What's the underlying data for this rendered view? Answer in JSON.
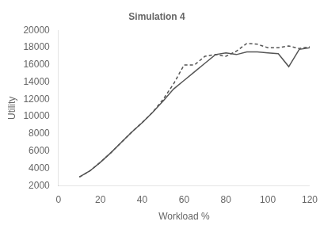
{
  "chart_data": {
    "type": "line",
    "title": "Simulation 4",
    "xlabel": "Workload %",
    "ylabel": "Utility",
    "x": [
      10,
      15,
      20,
      25,
      30,
      35,
      40,
      45,
      50,
      55,
      60,
      65,
      70,
      75,
      80,
      85,
      90,
      95,
      100,
      105,
      110,
      115,
      120
    ],
    "series": [
      {
        "color": "#555555",
        "line_style": "solid",
        "values": [
          3000,
          3700,
          4700,
          5800,
          7000,
          8200,
          9300,
          10500,
          11800,
          13200,
          14200,
          15200,
          16200,
          17200,
          17400,
          17200,
          17500,
          17500,
          17400,
          17300,
          15800,
          17800,
          18000
        ]
      },
      {
        "color": "#555555",
        "line_style": "dashed",
        "values": [
          3000,
          3700,
          4700,
          5800,
          7000,
          8200,
          9300,
          10500,
          12000,
          13800,
          16000,
          16000,
          17000,
          17200,
          17000,
          17600,
          18500,
          18400,
          18000,
          18000,
          18200,
          17900,
          18100
        ]
      }
    ],
    "xlim": [
      0,
      120
    ],
    "ylim": [
      2000,
      20000
    ],
    "xticks": [
      0,
      20,
      40,
      60,
      80,
      100,
      120
    ],
    "yticks": [
      2000,
      4000,
      6000,
      8000,
      10000,
      12000,
      14000,
      16000,
      18000,
      20000
    ],
    "grid": false
  }
}
